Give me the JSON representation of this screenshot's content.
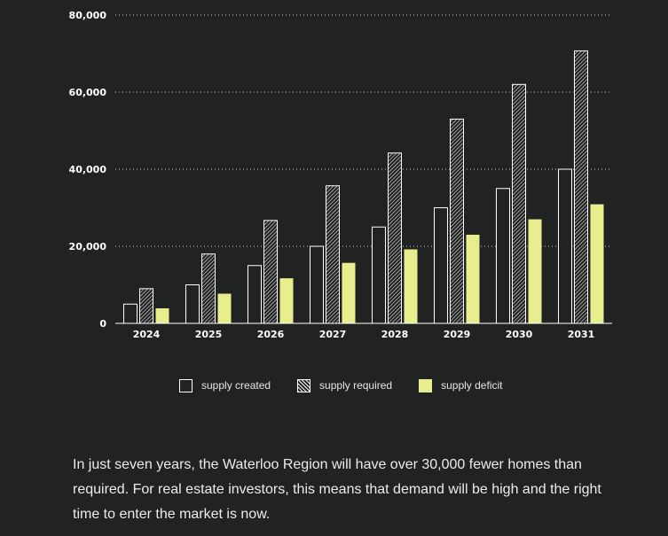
{
  "chart_data": {
    "type": "bar",
    "categories": [
      "2024",
      "2025",
      "2026",
      "2027",
      "2028",
      "2029",
      "2030",
      "2031"
    ],
    "series": [
      {
        "name": "supply created",
        "values": [
          5000,
          10000,
          15000,
          20000,
          25000,
          30000,
          35000,
          40000
        ]
      },
      {
        "name": "supply required",
        "values": [
          9000,
          18000,
          26700,
          35700,
          44200,
          53000,
          62000,
          70700
        ]
      },
      {
        "name": "supply deficit",
        "values": [
          3900,
          7700,
          11700,
          15700,
          19200,
          23000,
          27000,
          30900
        ]
      }
    ],
    "y_ticks": [
      0,
      20000,
      40000,
      60000,
      80000
    ],
    "y_tick_labels": [
      "0",
      "20,000",
      "40,000",
      "60,000",
      "80,000"
    ],
    "ylim": [
      0,
      80000
    ],
    "grid": true,
    "legend": "bottom-center",
    "colors": {
      "supply_created": "#212322",
      "supply_required": "hatched",
      "supply_deficit": "#e8ee8e",
      "outline": "#ffffff",
      "background": "#212322"
    }
  },
  "legend": {
    "items": [
      {
        "label": "supply created"
      },
      {
        "label": "supply required"
      },
      {
        "label": "supply deficit"
      }
    ]
  },
  "description": "In just seven years, the Waterloo Region will have over 30,000 fewer homes than required. For real estate investors, this means that demand will be high and the right time to enter the market is now."
}
